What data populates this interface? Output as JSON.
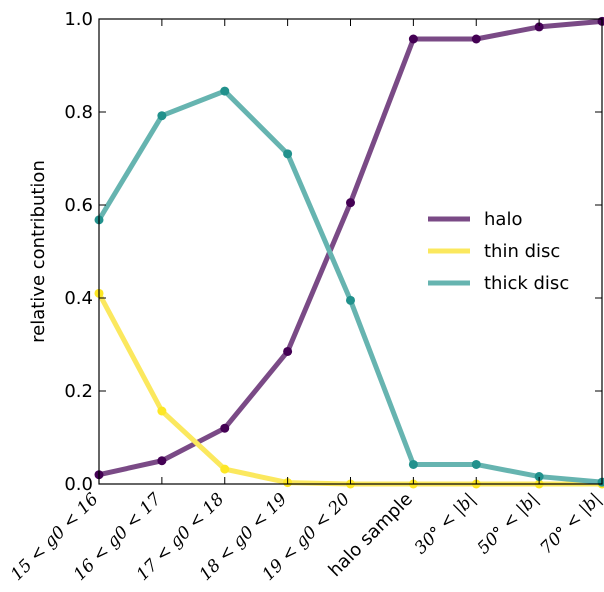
{
  "chart_data": {
    "type": "line",
    "title": "",
    "xlabel": "",
    "ylabel": "relative contribution",
    "ylim": [
      0.0,
      1.0
    ],
    "yticks": [
      "0.0",
      "0.2",
      "0.4",
      "0.6",
      "0.8",
      "1.0"
    ],
    "categories": [
      "15 < g0 < 16",
      "16 < g0 < 17",
      "17 < g0 < 18",
      "18 < g0 < 19",
      "19 < g0 < 20",
      "halo sample",
      "30° < |b|",
      "50° < |b|",
      "70° < |b|"
    ],
    "grid": false,
    "legend_position": "center-right",
    "series": [
      {
        "name": "halo",
        "color": "#440154",
        "line_color": "#7a4a86",
        "values": [
          0.02,
          0.05,
          0.12,
          0.285,
          0.605,
          0.957,
          0.957,
          0.983,
          0.995
        ]
      },
      {
        "name": "thin disc",
        "color": "#fde725",
        "line_color": "#fbe85e",
        "values": [
          0.41,
          0.157,
          0.032,
          0.003,
          0.0,
          0.0,
          0.0,
          0.0,
          0.0
        ]
      },
      {
        "name": "thick disc",
        "color": "#21918c",
        "line_color": "#66b4b0",
        "values": [
          0.568,
          0.792,
          0.845,
          0.71,
          0.395,
          0.042,
          0.042,
          0.016,
          0.004
        ]
      }
    ]
  }
}
